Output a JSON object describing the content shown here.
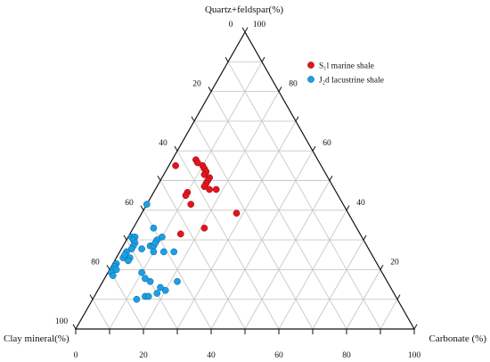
{
  "chart_data": {
    "type": "scatter",
    "subtype": "ternary",
    "axes": {
      "top": {
        "label": "Quartz+feldspar(%)",
        "ticks": [
          "0",
          "20",
          "40",
          "60",
          "80",
          "100"
        ]
      },
      "left": {
        "label": "Clay mineral(%)",
        "ticks": [
          "100",
          "80",
          "60",
          "40",
          "20"
        ]
      },
      "right": {
        "label": "Carbonate (%)",
        "ticks": [
          "100",
          "80",
          "60",
          "40",
          "20"
        ]
      },
      "bottom": {
        "ticks": [
          "0",
          "20",
          "40",
          "60",
          "80",
          "100"
        ]
      }
    },
    "grid": true,
    "grid_step": 10,
    "legend_position": "top-right",
    "series": [
      {
        "name": "S₁l marine shale",
        "color": "#e3141e",
        "points": [
          {
            "quartz_feldspar": 55,
            "clay": 43,
            "carbonate": 2
          },
          {
            "quartz_feldspar": 57,
            "clay": 36,
            "carbonate": 7
          },
          {
            "quartz_feldspar": 56,
            "clay": 36,
            "carbonate": 8
          },
          {
            "quartz_feldspar": 55,
            "clay": 35,
            "carbonate": 10
          },
          {
            "quartz_feldspar": 54,
            "clay": 35,
            "carbonate": 11
          },
          {
            "quartz_feldspar": 53,
            "clay": 35,
            "carbonate": 12
          },
          {
            "quartz_feldspar": 52,
            "clay": 36,
            "carbonate": 12
          },
          {
            "quartz_feldspar": 51,
            "clay": 35,
            "carbonate": 14
          },
          {
            "quartz_feldspar": 50,
            "clay": 36,
            "carbonate": 14
          },
          {
            "quartz_feldspar": 49,
            "clay": 37,
            "carbonate": 14
          },
          {
            "quartz_feldspar": 48,
            "clay": 38,
            "carbonate": 14
          },
          {
            "quartz_feldspar": 46,
            "clay": 44,
            "carbonate": 10
          },
          {
            "quartz_feldspar": 45,
            "clay": 45,
            "carbonate": 10
          },
          {
            "quartz_feldspar": 47,
            "clay": 35,
            "carbonate": 18
          },
          {
            "quartz_feldspar": 47,
            "clay": 37,
            "carbonate": 16
          },
          {
            "quartz_feldspar": 42,
            "clay": 45,
            "carbonate": 13
          },
          {
            "quartz_feldspar": 34,
            "clay": 45,
            "carbonate": 21
          },
          {
            "quartz_feldspar": 32,
            "clay": 53,
            "carbonate": 15
          },
          {
            "quartz_feldspar": 39,
            "clay": 33,
            "carbonate": 28
          }
        ]
      },
      {
        "name": "J₂d lacustrine shale",
        "color": "#1aa0e6",
        "points": [
          {
            "quartz_feldspar": 42,
            "clay": 58,
            "carbonate": 0
          },
          {
            "quartz_feldspar": 34,
            "clay": 60,
            "carbonate": 6
          },
          {
            "quartz_feldspar": 31,
            "clay": 68,
            "carbonate": 1
          },
          {
            "quartz_feldspar": 31,
            "clay": 67,
            "carbonate": 2
          },
          {
            "quartz_feldspar": 30,
            "clay": 68,
            "carbonate": 2
          },
          {
            "quartz_feldspar": 29,
            "clay": 68,
            "carbonate": 3
          },
          {
            "quartz_feldspar": 28,
            "clay": 69,
            "carbonate": 3
          },
          {
            "quartz_feldspar": 27,
            "clay": 70,
            "carbonate": 3
          },
          {
            "quartz_feldspar": 26,
            "clay": 72,
            "carbonate": 2
          },
          {
            "quartz_feldspar": 24,
            "clay": 74,
            "carbonate": 2
          },
          {
            "quartz_feldspar": 22,
            "clay": 77,
            "carbonate": 1
          },
          {
            "quartz_feldspar": 21,
            "clay": 78,
            "carbonate": 1
          },
          {
            "quartz_feldspar": 20,
            "clay": 79,
            "carbonate": 1
          },
          {
            "quartz_feldspar": 20,
            "clay": 78,
            "carbonate": 2
          },
          {
            "quartz_feldspar": 19,
            "clay": 80,
            "carbonate": 1
          },
          {
            "quartz_feldspar": 18,
            "clay": 80,
            "carbonate": 2
          },
          {
            "quartz_feldspar": 25,
            "clay": 73,
            "carbonate": 2
          },
          {
            "quartz_feldspar": 24,
            "clay": 72,
            "carbonate": 4
          },
          {
            "quartz_feldspar": 23,
            "clay": 73,
            "carbonate": 4
          },
          {
            "quartz_feldspar": 27,
            "clay": 67,
            "carbonate": 6
          },
          {
            "quartz_feldspar": 28,
            "clay": 64,
            "carbonate": 8
          },
          {
            "quartz_feldspar": 28,
            "clay": 63,
            "carbonate": 9
          },
          {
            "quartz_feldspar": 26,
            "clay": 64,
            "carbonate": 10
          },
          {
            "quartz_feldspar": 31,
            "clay": 59,
            "carbonate": 10
          },
          {
            "quartz_feldspar": 30,
            "clay": 61,
            "carbonate": 9
          },
          {
            "quartz_feldspar": 29,
            "clay": 62,
            "carbonate": 9
          },
          {
            "quartz_feldspar": 26,
            "clay": 58,
            "carbonate": 16
          },
          {
            "quartz_feldspar": 26,
            "clay": 61,
            "carbonate": 13
          },
          {
            "quartz_feldspar": 16,
            "clay": 70,
            "carbonate": 14
          },
          {
            "quartz_feldspar": 17,
            "clay": 71,
            "carbonate": 12
          },
          {
            "quartz_feldspar": 16,
            "clay": 62,
            "carbonate": 22
          },
          {
            "quartz_feldspar": 19,
            "clay": 71,
            "carbonate": 10
          },
          {
            "quartz_feldspar": 13,
            "clay": 67,
            "carbonate": 20
          },
          {
            "quartz_feldspar": 12,
            "clay": 70,
            "carbonate": 18
          },
          {
            "quartz_feldspar": 14,
            "clay": 68,
            "carbonate": 18
          },
          {
            "quartz_feldspar": 11,
            "clay": 74,
            "carbonate": 15
          },
          {
            "quartz_feldspar": 10,
            "clay": 77,
            "carbonate": 13
          },
          {
            "quartz_feldspar": 11,
            "clay": 73,
            "carbonate": 16
          }
        ]
      }
    ]
  }
}
